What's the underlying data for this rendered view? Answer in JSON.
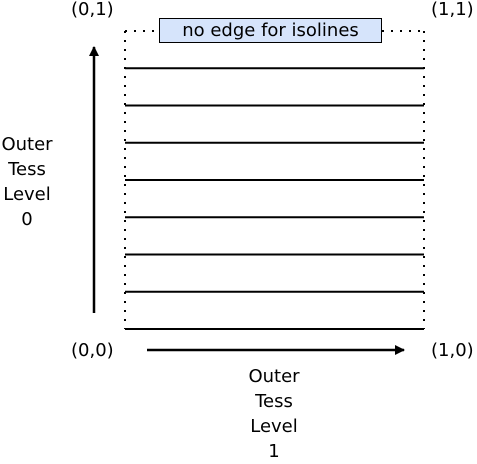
{
  "corners": {
    "top_left": "(0,1)",
    "top_right": "(1,1)",
    "bottom_left": "(0,0)",
    "bottom_right": "(1,0)"
  },
  "banner": "no edge for isolines",
  "vertical_axis_label": [
    "Outer",
    "Tess",
    "Level",
    "0"
  ],
  "horizontal_axis_label": [
    "Outer",
    "Tess",
    "Level",
    "1"
  ],
  "isoline_count": 7,
  "colors": {
    "banner_fill": "#d6e4fb",
    "stroke": "#000000"
  }
}
